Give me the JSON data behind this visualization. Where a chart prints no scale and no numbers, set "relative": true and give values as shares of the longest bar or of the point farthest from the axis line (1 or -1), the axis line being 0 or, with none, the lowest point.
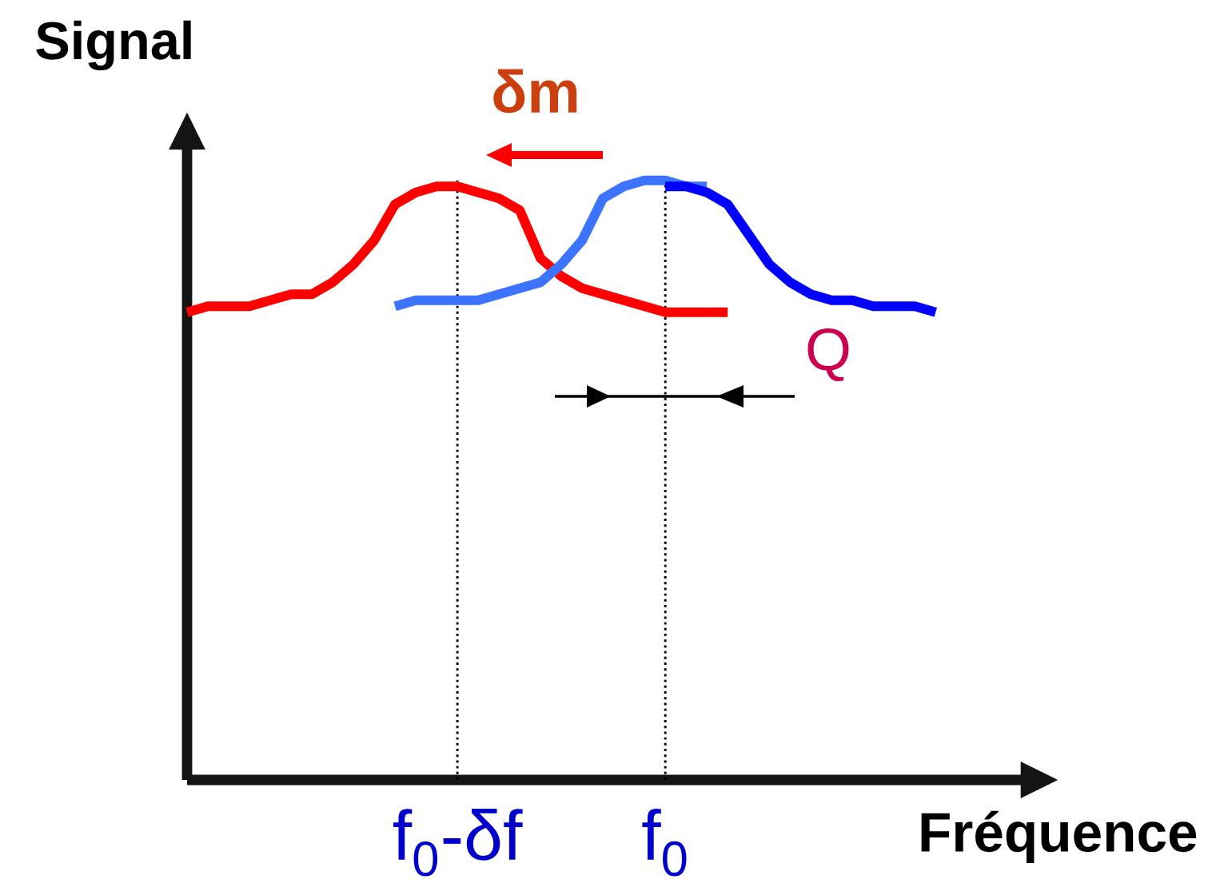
{
  "chart_data": {
    "type": "line",
    "xlabel": "Fréquence",
    "ylabel": "Signal",
    "relative": true,
    "categories": [
      null,
      null,
      null,
      null,
      null,
      null,
      null,
      null,
      null,
      null,
      null,
      null,
      null,
      "f$_{0}$-δf",
      null,
      null,
      null,
      null,
      null,
      null,
      null,
      null,
      null,
      "f$_{0}$",
      null,
      null,
      null,
      null,
      null,
      null,
      null,
      null,
      null,
      null,
      null,
      null,
      null
    ],
    "tick_labels": "x",
    "marker": "none",
    "line_style": "solid",
    "annotations": [
      "δm",
      "Q"
    ],
    "ref_lines": [
      {
        "axis": "x",
        "value": "f$_{0}$-δf",
        "color": "#000000",
        "line_style": "dotted"
      },
      {
        "axis": "x",
        "value": "f$_{0}$",
        "color": "#000000",
        "line_style": "dotted"
      }
    ],
    "series": [
      {
        "color": "#ff0000",
        "values": [
          0.78,
          0.79,
          0.79,
          0.79,
          0.8,
          0.81,
          0.81,
          0.83,
          0.86,
          0.9,
          0.96,
          0.98,
          0.99,
          0.99,
          0.98,
          0.97,
          0.95,
          0.87,
          0.84,
          0.82,
          0.81,
          0.8,
          0.79,
          0.78,
          0.78,
          0.78,
          0.78,
          null,
          null,
          null,
          null,
          null,
          null,
          null,
          null,
          null,
          null
        ]
      },
      {
        "color": "#3d74ff",
        "values": [
          null,
          null,
          null,
          null,
          null,
          null,
          null,
          null,
          null,
          null,
          0.79,
          0.8,
          0.8,
          0.8,
          0.8,
          0.81,
          0.82,
          0.83,
          0.86,
          0.9,
          0.97,
          0.99,
          1.0,
          1.0,
          0.99,
          0.99,
          null,
          null,
          null,
          null,
          null,
          null,
          null,
          null,
          null,
          null,
          null
        ]
      },
      {
        "color": "#0000ff",
        "values": [
          null,
          null,
          null,
          null,
          null,
          null,
          null,
          null,
          null,
          null,
          null,
          null,
          null,
          null,
          null,
          null,
          null,
          null,
          null,
          null,
          null,
          null,
          null,
          0.99,
          0.99,
          0.98,
          0.96,
          0.91,
          0.86,
          0.83,
          0.81,
          0.8,
          0.8,
          0.79,
          0.79,
          0.79,
          0.78
        ]
      }
    ]
  }
}
